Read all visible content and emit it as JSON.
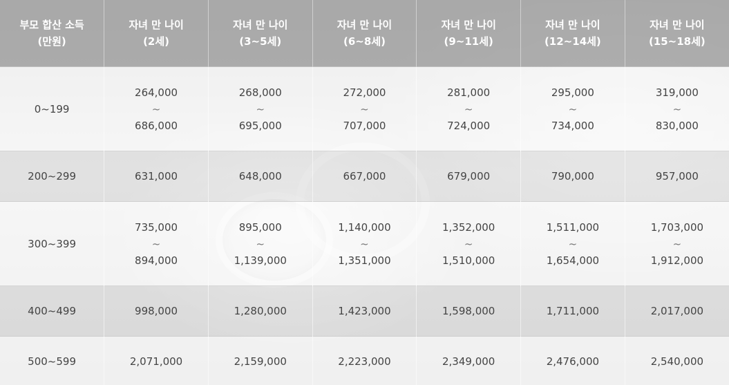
{
  "table": {
    "headers": [
      {
        "line1": "부모 합산 소득",
        "line2": "(만원)"
      },
      {
        "line1": "자녀 만 나이",
        "line2": "(2세)"
      },
      {
        "line1": "자녀 만 나이",
        "line2": "(3~5세)"
      },
      {
        "line1": "자녀 만 나이",
        "line2": "(6~8세)"
      },
      {
        "line1": "자녀 만 나이",
        "line2": "(9~11세)"
      },
      {
        "line1": "자녀 만 나이",
        "line2": "(12~14세)"
      },
      {
        "line1": "자녀 만 나이",
        "line2": "(15~18세)"
      }
    ],
    "tilde": "~",
    "rows": [
      {
        "income": "0~199",
        "cells": [
          {
            "low": "264,000",
            "high": "686,000"
          },
          {
            "low": "268,000",
            "high": "695,000"
          },
          {
            "low": "272,000",
            "high": "707,000"
          },
          {
            "low": "281,000",
            "high": "724,000"
          },
          {
            "low": "295,000",
            "high": "734,000"
          },
          {
            "low": "319,000",
            "high": "830,000"
          }
        ]
      },
      {
        "income": "200~299",
        "cells": [
          {
            "value": "631,000"
          },
          {
            "value": "648,000"
          },
          {
            "value": "667,000"
          },
          {
            "value": "679,000"
          },
          {
            "value": "790,000"
          },
          {
            "value": "957,000"
          }
        ]
      },
      {
        "income": "300~399",
        "cells": [
          {
            "low": "735,000",
            "high": "894,000"
          },
          {
            "low": "895,000",
            "high": "1,139,000"
          },
          {
            "low": "1,140,000",
            "high": "1,351,000"
          },
          {
            "low": "1,352,000",
            "high": "1,510,000"
          },
          {
            "low": "1,511,000",
            "high": "1,654,000"
          },
          {
            "low": "1,703,000",
            "high": "1,912,000"
          }
        ]
      },
      {
        "income": "400~499",
        "cells": [
          {
            "value": "998,000"
          },
          {
            "value": "1,280,000"
          },
          {
            "value": "1,423,000"
          },
          {
            "value": "1,598,000"
          },
          {
            "value": "1,711,000"
          },
          {
            "value": "2,017,000"
          }
        ]
      },
      {
        "income": "500~599",
        "cells": [
          {
            "value": "2,071,000"
          },
          {
            "value": "2,159,000"
          },
          {
            "value": "2,223,000"
          },
          {
            "value": "2,349,000"
          },
          {
            "value": "2,476,000"
          },
          {
            "value": "2,540,000"
          }
        ]
      }
    ]
  }
}
